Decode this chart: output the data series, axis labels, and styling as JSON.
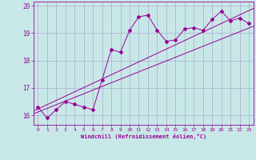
{
  "xlabel": "Windchill (Refroidissement éolien,°C)",
  "bg_color": "#c8e8e8",
  "grid_color": "#aaaacc",
  "line_color": "#990099",
  "xlim": [
    -0.5,
    23.5
  ],
  "ylim": [
    15.65,
    20.15
  ],
  "xticks": [
    0,
    1,
    2,
    3,
    4,
    5,
    6,
    7,
    8,
    9,
    10,
    11,
    12,
    13,
    14,
    15,
    16,
    17,
    18,
    19,
    20,
    21,
    22,
    23
  ],
  "yticks": [
    16,
    17,
    18,
    19,
    20
  ],
  "scatter_x": [
    0,
    1,
    2,
    3,
    4,
    5,
    6,
    7,
    8,
    9,
    10,
    11,
    12,
    13,
    14,
    15,
    16,
    17,
    18,
    19,
    20,
    21,
    22,
    23
  ],
  "scatter_y": [
    16.3,
    15.9,
    16.2,
    16.5,
    16.4,
    16.3,
    16.2,
    17.3,
    18.4,
    18.3,
    19.1,
    19.6,
    19.65,
    19.1,
    18.7,
    18.75,
    19.15,
    19.2,
    19.1,
    19.5,
    19.8,
    19.45,
    19.55,
    19.35
  ],
  "line1_x": [
    -0.5,
    23.5
  ],
  "line1_y": [
    16.05,
    19.25
  ],
  "line2_x": [
    -0.5,
    23.5
  ],
  "line2_y": [
    16.15,
    19.9
  ]
}
